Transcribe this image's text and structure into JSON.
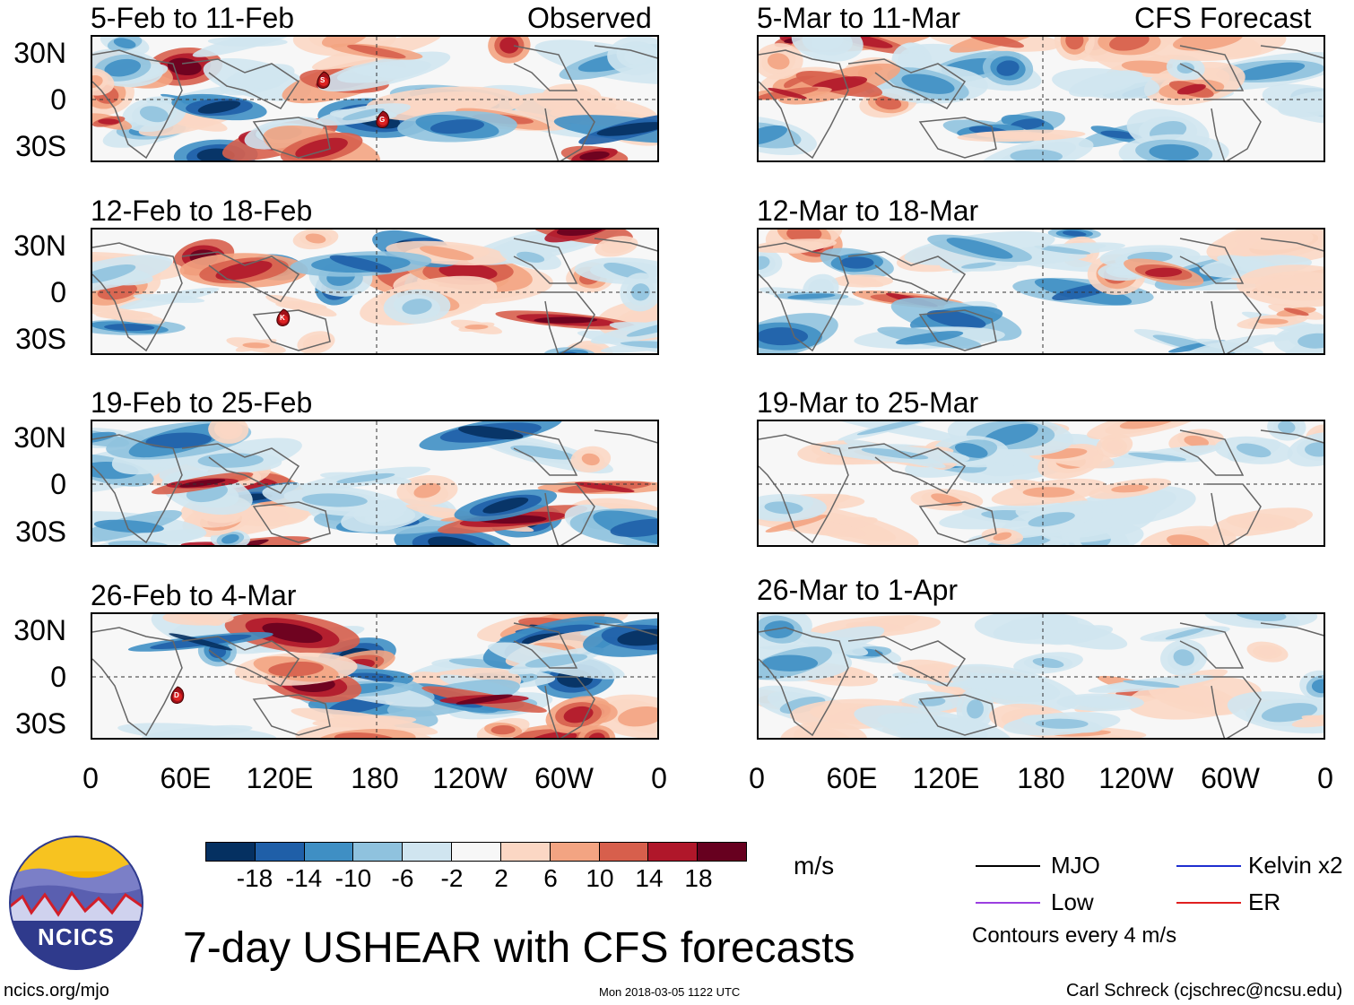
{
  "header": {
    "left_column": "Observed",
    "right_column": "CFS Forecast"
  },
  "panels": {
    "left": [
      {
        "title": "5-Feb to 11-Feb"
      },
      {
        "title": "12-Feb to 18-Feb"
      },
      {
        "title": "19-Feb to 25-Feb"
      },
      {
        "title": "26-Feb to 4-Mar"
      }
    ],
    "right": [
      {
        "title": "5-Mar to 11-Mar"
      },
      {
        "title": "12-Mar to 18-Mar"
      },
      {
        "title": "19-Mar to 25-Mar"
      },
      {
        "title": "26-Mar to 1-Apr"
      }
    ]
  },
  "storm_markers": [
    "S",
    "G",
    "K",
    "D"
  ],
  "axes": {
    "lat_labels": [
      "30N",
      "0",
      "30S"
    ],
    "lon_labels": [
      "0",
      "60E",
      "120E",
      "180",
      "120W",
      "60W",
      "0"
    ]
  },
  "colorbar": {
    "units": "m/s",
    "ticks": [
      "-18",
      "-14",
      "-10",
      "-6",
      "-2",
      "2",
      "6",
      "10",
      "14",
      "18"
    ],
    "colors": [
      "#053061",
      "#1f5fa8",
      "#3f8fc4",
      "#8fc2de",
      "#d0e5f0",
      "#f7f7f7",
      "#fbd7c4",
      "#f3a482",
      "#d75f4c",
      "#b0172a",
      "#67001f"
    ]
  },
  "title": "7-day USHEAR with CFS forecasts",
  "legend": {
    "mjo": "MJO",
    "kelvin": "Kelvin x2",
    "low": "Low",
    "er": "ER",
    "contours": "Contours every 4 m/s",
    "colors": {
      "mjo": "#000000",
      "kelvin": "#1f2fd0",
      "low": "#9b3fe0",
      "er": "#e02020"
    }
  },
  "footer": {
    "site": "ncics.org/mjo",
    "timestamp": "Mon 2018-03-05 1122 UTC",
    "author": "Carl Schreck (cjschrec@ncsu.edu)"
  },
  "logo": {
    "text": "NCICS"
  }
}
